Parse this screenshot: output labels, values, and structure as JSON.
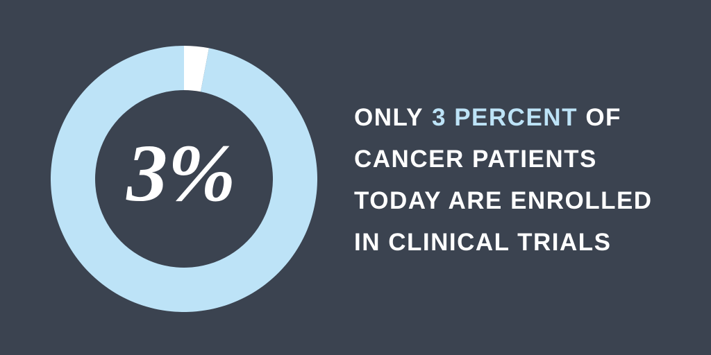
{
  "chart_data": {
    "type": "donut",
    "values": [
      3,
      97
    ],
    "value_labels": [
      "3%",
      null
    ],
    "colors": [
      "#ffffff",
      "#bde3f7"
    ],
    "background": "#3b4350",
    "caption_lines": [
      [
        {
          "text": "ONLY",
          "color": "#ffffff"
        },
        {
          "text": "3 PERCENT",
          "color": "#bde3f7"
        },
        {
          "text": "OF",
          "color": "#ffffff"
        }
      ],
      [
        {
          "text": "CANCER PATIENTS",
          "color": "#ffffff"
        }
      ],
      [
        {
          "text": "TODAY ARE ENROLLED",
          "color": "#ffffff"
        }
      ],
      [
        {
          "text": "IN CLINICAL TRIALS",
          "color": "#ffffff"
        }
      ]
    ]
  }
}
